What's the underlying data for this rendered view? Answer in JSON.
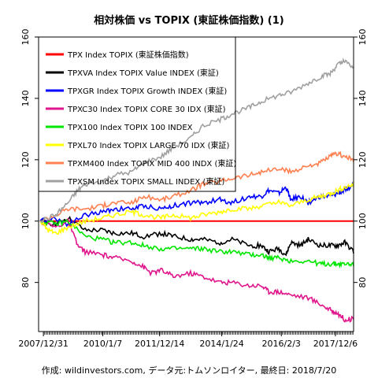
{
  "chart_data": {
    "type": "line",
    "title": "相対株価 vs TOPIX (東証株価指数) (1)",
    "footer": "作成: wildinvestors.com, データ元:トムソンロイター, 最終日: 2018/7/20",
    "ylim": [
      64,
      160
    ],
    "x_range": [
      "2007-11-01",
      "2018-07-20"
    ],
    "y_ticks": [
      80,
      100,
      120,
      140,
      160
    ],
    "x_ticks": [
      {
        "date": "2007-12-31",
        "label": "2007/12/31"
      },
      {
        "date": "2010-01-07",
        "label": "2010/1/7"
      },
      {
        "date": "2011-12-14",
        "label": "2011/12/14"
      },
      {
        "date": "2014-01-24",
        "label": "2014/1/24"
      },
      {
        "date": "2016-02-03",
        "label": "2016/2/3"
      },
      {
        "date": "2017-12-06",
        "label": "2017/12/6"
      }
    ],
    "baseline": 100,
    "grid": false,
    "legend_position": "top-left",
    "series": [
      {
        "name": "TPX Index TOPIX (東証株価指数)",
        "color": "#ff0000",
        "points": [
          [
            "2007-11-20",
            100
          ],
          [
            "2018-07-20",
            100
          ]
        ]
      },
      {
        "name": "TPXVA Index TOPIX Value INDEX (東証)",
        "color": "#000000",
        "points": [
          [
            "2007-11-20",
            100
          ],
          [
            "2008-06-01",
            99
          ],
          [
            "2008-11-01",
            101
          ],
          [
            "2009-06-01",
            97
          ],
          [
            "2010-01-01",
            97
          ],
          [
            "2010-06-01",
            96
          ],
          [
            "2011-01-01",
            96
          ],
          [
            "2011-06-01",
            95
          ],
          [
            "2012-01-01",
            96
          ],
          [
            "2012-06-01",
            95
          ],
          [
            "2013-01-01",
            94
          ],
          [
            "2013-06-01",
            94
          ],
          [
            "2014-01-01",
            93
          ],
          [
            "2014-06-01",
            94
          ],
          [
            "2015-01-01",
            92
          ],
          [
            "2015-06-01",
            92
          ],
          [
            "2015-09-01",
            90
          ],
          [
            "2016-01-01",
            91
          ],
          [
            "2016-04-01",
            89
          ],
          [
            "2016-06-01",
            93
          ],
          [
            "2016-10-01",
            92
          ],
          [
            "2017-01-01",
            94
          ],
          [
            "2017-06-01",
            92
          ],
          [
            "2017-10-01",
            92
          ],
          [
            "2018-01-01",
            92
          ],
          [
            "2018-04-01",
            93
          ],
          [
            "2018-07-20",
            90
          ]
        ]
      },
      {
        "name": "TPXGR Index TOPIX Growth INDEX (東証)",
        "color": "#0000ff",
        "points": [
          [
            "2007-11-20",
            100
          ],
          [
            "2008-06-01",
            101
          ],
          [
            "2008-11-01",
            99
          ],
          [
            "2009-06-01",
            102
          ],
          [
            "2010-01-01",
            103
          ],
          [
            "2010-06-01",
            104
          ],
          [
            "2011-01-01",
            104
          ],
          [
            "2011-06-01",
            105
          ],
          [
            "2012-01-01",
            104
          ],
          [
            "2012-06-01",
            105
          ],
          [
            "2013-01-01",
            106
          ],
          [
            "2013-06-01",
            106
          ],
          [
            "2014-01-01",
            107
          ],
          [
            "2014-06-01",
            106
          ],
          [
            "2015-01-01",
            108
          ],
          [
            "2015-06-01",
            108
          ],
          [
            "2015-09-01",
            110
          ],
          [
            "2016-01-01",
            109
          ],
          [
            "2016-04-01",
            111
          ],
          [
            "2016-06-01",
            107
          ],
          [
            "2016-10-01",
            108
          ],
          [
            "2017-01-01",
            106
          ],
          [
            "2017-06-01",
            108
          ],
          [
            "2017-10-01",
            108
          ],
          [
            "2018-01-01",
            109
          ],
          [
            "2018-04-01",
            110
          ],
          [
            "2018-07-20",
            112
          ]
        ]
      },
      {
        "name": "TPXC30 Index TOPIX CORE 30 IDX (東証)",
        "color": "#e0168c",
        "points": [
          [
            "2007-11-20",
            100
          ],
          [
            "2008-06-01",
            98
          ],
          [
            "2008-11-01",
            100
          ],
          [
            "2009-03-01",
            92
          ],
          [
            "2009-06-01",
            90
          ],
          [
            "2010-01-01",
            89
          ],
          [
            "2010-06-01",
            88
          ],
          [
            "2011-01-01",
            87
          ],
          [
            "2011-06-01",
            85
          ],
          [
            "2011-09-01",
            83
          ],
          [
            "2012-01-01",
            84
          ],
          [
            "2012-06-01",
            82
          ],
          [
            "2013-01-01",
            83
          ],
          [
            "2013-06-01",
            82
          ],
          [
            "2014-01-01",
            80
          ],
          [
            "2014-06-01",
            80
          ],
          [
            "2015-01-01",
            79
          ],
          [
            "2015-06-01",
            79
          ],
          [
            "2015-09-01",
            77
          ],
          [
            "2016-01-01",
            77
          ],
          [
            "2016-06-01",
            76
          ],
          [
            "2017-01-01",
            75
          ],
          [
            "2017-06-01",
            73
          ],
          [
            "2017-10-01",
            71
          ],
          [
            "2018-01-01",
            70
          ],
          [
            "2018-04-01",
            68
          ],
          [
            "2018-07-20",
            68
          ]
        ]
      },
      {
        "name": "TPX100 Index TOPIX 100 INDEX",
        "color": "#00e600",
        "points": [
          [
            "2007-11-20",
            100
          ],
          [
            "2008-06-01",
            99
          ],
          [
            "2008-11-01",
            100
          ],
          [
            "2009-06-01",
            95
          ],
          [
            "2010-01-01",
            94
          ],
          [
            "2010-06-01",
            93
          ],
          [
            "2011-01-01",
            93
          ],
          [
            "2011-06-01",
            92
          ],
          [
            "2012-01-01",
            91
          ],
          [
            "2012-06-01",
            91
          ],
          [
            "2013-01-01",
            91
          ],
          [
            "2013-06-01",
            91
          ],
          [
            "2014-01-01",
            90
          ],
          [
            "2014-06-01",
            90
          ],
          [
            "2015-01-01",
            89
          ],
          [
            "2015-06-01",
            89
          ],
          [
            "2015-09-01",
            88
          ],
          [
            "2016-01-01",
            88
          ],
          [
            "2016-06-01",
            87
          ],
          [
            "2017-01-01",
            87
          ],
          [
            "2017-06-01",
            86
          ],
          [
            "2017-10-01",
            86
          ],
          [
            "2018-01-01",
            86
          ],
          [
            "2018-04-01",
            86
          ],
          [
            "2018-07-20",
            86
          ]
        ]
      },
      {
        "name": "TPXL70 Index TOPIX LARGE 70 IDX (東証)",
        "color": "#ffff00",
        "points": [
          [
            "2007-11-20",
            100
          ],
          [
            "2008-03-01",
            97
          ],
          [
            "2008-06-01",
            96
          ],
          [
            "2008-11-01",
            98
          ],
          [
            "2009-06-01",
            100
          ],
          [
            "2010-01-01",
            101
          ],
          [
            "2010-06-01",
            102
          ],
          [
            "2011-01-01",
            103
          ],
          [
            "2011-06-01",
            102
          ],
          [
            "2012-01-01",
            101
          ],
          [
            "2012-06-01",
            102
          ],
          [
            "2013-01-01",
            101
          ],
          [
            "2013-06-01",
            102
          ],
          [
            "2014-01-01",
            103
          ],
          [
            "2014-06-01",
            104
          ],
          [
            "2015-01-01",
            104
          ],
          [
            "2015-06-01",
            105
          ],
          [
            "2016-01-01",
            106
          ],
          [
            "2016-06-01",
            105
          ],
          [
            "2017-01-01",
            107
          ],
          [
            "2017-06-01",
            108
          ],
          [
            "2017-10-01",
            109
          ],
          [
            "2018-01-01",
            110
          ],
          [
            "2018-04-01",
            111
          ],
          [
            "2018-07-20",
            112
          ]
        ]
      },
      {
        "name": "TPXM400 Index TOPIX MID 400 INDX (東証)",
        "color": "#ff8050",
        "points": [
          [
            "2007-11-20",
            100
          ],
          [
            "2008-06-01",
            102
          ],
          [
            "2008-11-01",
            104
          ],
          [
            "2009-06-01",
            104
          ],
          [
            "2010-01-01",
            105
          ],
          [
            "2010-06-01",
            106
          ],
          [
            "2011-01-01",
            106
          ],
          [
            "2011-06-01",
            108
          ],
          [
            "2012-01-01",
            107
          ],
          [
            "2012-06-01",
            108
          ],
          [
            "2013-01-01",
            110
          ],
          [
            "2013-06-01",
            112
          ],
          [
            "2014-01-01",
            113
          ],
          [
            "2014-06-01",
            114
          ],
          [
            "2015-01-01",
            115
          ],
          [
            "2015-06-01",
            116
          ],
          [
            "2016-01-01",
            117
          ],
          [
            "2016-06-01",
            116
          ],
          [
            "2017-01-01",
            118
          ],
          [
            "2017-06-01",
            119
          ],
          [
            "2017-10-01",
            121
          ],
          [
            "2018-01-01",
            122
          ],
          [
            "2018-04-01",
            121
          ],
          [
            "2018-07-20",
            120
          ]
        ]
      },
      {
        "name": "TPXSM Index TOPIX SMALL INDEX (東証)",
        "color": "#a0a0a0",
        "points": [
          [
            "2007-11-20",
            100
          ],
          [
            "2008-06-01",
            102
          ],
          [
            "2008-11-01",
            106
          ],
          [
            "2009-03-01",
            110
          ],
          [
            "2009-06-01",
            112
          ],
          [
            "2010-01-01",
            113
          ],
          [
            "2010-06-01",
            115
          ],
          [
            "2011-01-01",
            116
          ],
          [
            "2011-06-01",
            119
          ],
          [
            "2012-01-01",
            121
          ],
          [
            "2012-06-01",
            124
          ],
          [
            "2013-01-01",
            127
          ],
          [
            "2013-06-01",
            131
          ],
          [
            "2014-01-01",
            133
          ],
          [
            "2014-06-01",
            135
          ],
          [
            "2015-01-01",
            137
          ],
          [
            "2015-06-01",
            139
          ],
          [
            "2016-01-01",
            141
          ],
          [
            "2016-06-01",
            142
          ],
          [
            "2017-01-01",
            145
          ],
          [
            "2017-06-01",
            147
          ],
          [
            "2017-10-01",
            148
          ],
          [
            "2018-01-01",
            151
          ],
          [
            "2018-04-01",
            152
          ],
          [
            "2018-07-20",
            150
          ]
        ]
      }
    ]
  }
}
